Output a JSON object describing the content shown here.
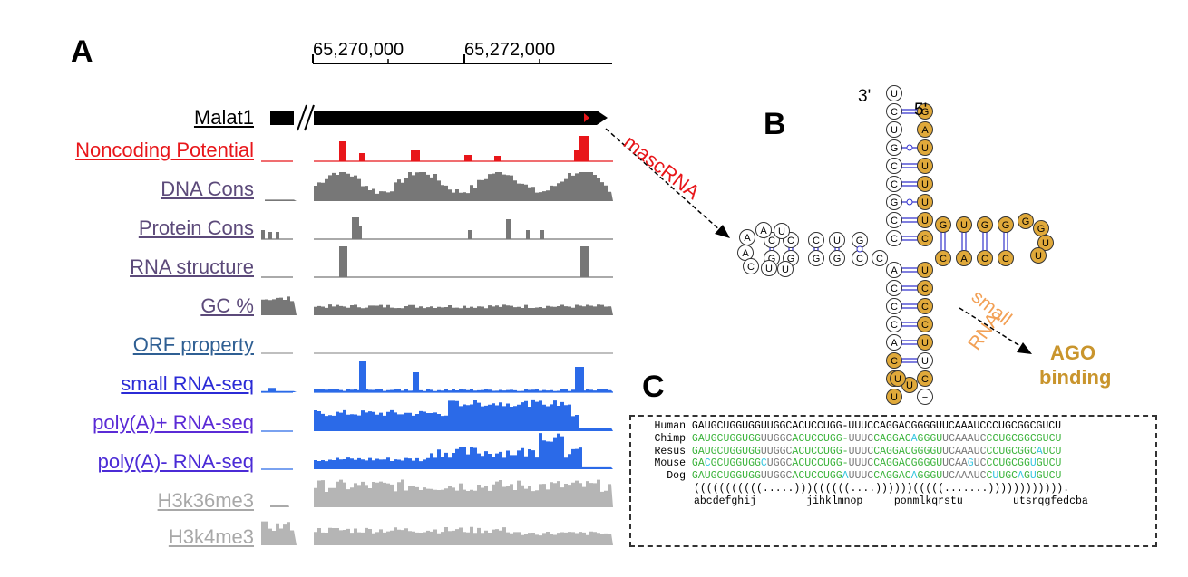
{
  "panels": {
    "a": "A",
    "b": "B",
    "c": "C"
  },
  "coords": [
    "65,270,000",
    "65,272,000"
  ],
  "tracks": [
    {
      "id": "malat1",
      "label": "Malat1",
      "color": "#000000"
    },
    {
      "id": "noncoding",
      "label": "Noncoding Potential",
      "color": "#e8161a"
    },
    {
      "id": "dnacons",
      "label": "DNA Cons",
      "color": "#5c4a7a"
    },
    {
      "id": "protcons",
      "label": "Protein Cons",
      "color": "#5c4a7a"
    },
    {
      "id": "rnastruct",
      "label": "RNA structure",
      "color": "#5c4a7a"
    },
    {
      "id": "gc",
      "label": "GC %",
      "color": "#5c4a7a"
    },
    {
      "id": "orf",
      "label": "ORF property",
      "color": "#2f5f93"
    },
    {
      "id": "smallrna",
      "label": "small RNA-seq",
      "color": "#2b2bd6"
    },
    {
      "id": "polyaplus",
      "label": "poly(A)+ RNA-seq",
      "color": "#5b2bd6"
    },
    {
      "id": "polyaminus",
      "label": "poly(A)- RNA-seq",
      "color": "#4b2bd6"
    },
    {
      "id": "h3k36",
      "label": "H3k36me3",
      "color": "#a8a8a8"
    },
    {
      "id": "h3k4",
      "label": "H3k4me3",
      "color": "#a8a8a8"
    }
  ],
  "arrows": {
    "mascrna": "mascRNA",
    "small": "small",
    "rna": "RNA",
    "ago1": "AGO",
    "ago2": "binding"
  },
  "structure": {
    "three_prime": "3'",
    "five_prime": "5'"
  },
  "alignment": {
    "species": [
      "Human",
      "Chimp",
      "Resus",
      "Mouse",
      "Dog"
    ],
    "sequences": [
      "GAUGCUGGUGGUUGGCACUCCUGG-UUUCCAGGACGGGGUUCAAAUCCCUGCGGCGUCU",
      "GAUGCUGGUGGUUGGCACUCCUGG-UUUCCAGGACAGGGUUCAAAUCCCUGCGGCGUCU",
      "GAUGCUGGUGGUUGGCACUCCUGG-UUUCCAGGACGGGGUUCAAAUCCCUGCGGCAUCU",
      "GACGCUGGUGGCUGGCACUCCUGG-UUUCCAGGACGGGGUUCAAGUCCCUGCGGUGUCU",
      "GAUGCUGGUGGUUGGCACUCCUGGAUUUCCAGGACAGGGUUCAAAUCCUUGCAGUGUCU"
    ],
    "dotbracket": "(((((((((((.....)))((((((....))))))(((((.......)))))))))))).",
    "letters": "abcdefghij        jihklmnop     ponmlkqrstu        utsrqgfedcba"
  },
  "colors": {
    "conserved": "#3bb33b",
    "mismatch": "#35c6e0",
    "gray": "#777777",
    "orange": "#e0a93a",
    "blue": "#2b6ae8",
    "red": "#e8161a"
  }
}
